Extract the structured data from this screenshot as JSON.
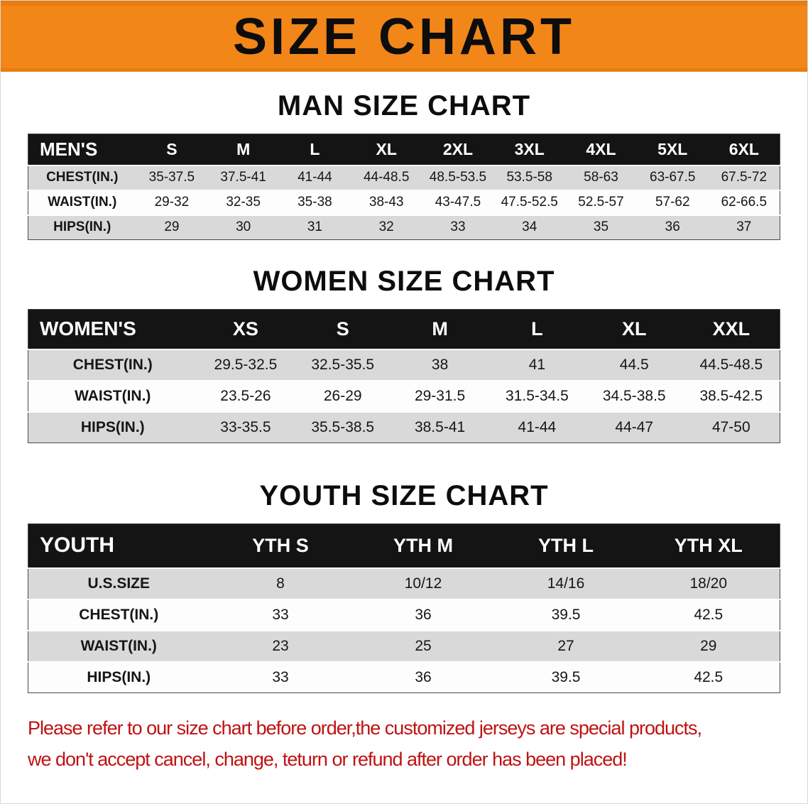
{
  "banner": {
    "title": "SIZE CHART"
  },
  "colors": {
    "banner_orange": "#f28618",
    "table_header_black": "#141414",
    "row_gray": "#d9d9d9",
    "row_white": "#fdfdfd",
    "disclaimer_red": "#c01212"
  },
  "sections": [
    {
      "heading": "MAN SIZE CHART",
      "header_label": "MEN'S",
      "columns": [
        "S",
        "M",
        "L",
        "XL",
        "2XL",
        "3XL",
        "4XL",
        "5XL",
        "6XL"
      ],
      "rows": [
        {
          "label": "CHEST(IN.)",
          "values": [
            "35-37.5",
            "37.5-41",
            "41-44",
            "44-48.5",
            "48.5-53.5",
            "53.5-58",
            "58-63",
            "63-67.5",
            "67.5-72"
          ]
        },
        {
          "label": "WAIST(IN.)",
          "values": [
            "29-32",
            "32-35",
            "35-38",
            "38-43",
            "43-47.5",
            "47.5-52.5",
            "52.5-57",
            "57-62",
            "62-66.5"
          ]
        },
        {
          "label": "HIPS(IN.)",
          "values": [
            "29",
            "30",
            "31",
            "32",
            "33",
            "34",
            "35",
            "36",
            "37"
          ]
        }
      ]
    },
    {
      "heading": "WOMEN SIZE CHART",
      "header_label": "WOMEN'S",
      "columns": [
        "XS",
        "S",
        "M",
        "L",
        "XL",
        "XXL"
      ],
      "rows": [
        {
          "label": "CHEST(IN.)",
          "values": [
            "29.5-32.5",
            "32.5-35.5",
            "38",
            "41",
            "44.5",
            "44.5-48.5"
          ]
        },
        {
          "label": "WAIST(IN.)",
          "values": [
            "23.5-26",
            "26-29",
            "29-31.5",
            "31.5-34.5",
            "34.5-38.5",
            "38.5-42.5"
          ]
        },
        {
          "label": "HIPS(IN.)",
          "values": [
            "33-35.5",
            "35.5-38.5",
            "38.5-41",
            "41-44",
            "44-47",
            "47-50"
          ]
        }
      ]
    },
    {
      "heading": "YOUTH SIZE CHART",
      "header_label": "YOUTH",
      "columns": [
        "YTH S",
        "YTH M",
        "YTH L",
        "YTH XL"
      ],
      "rows": [
        {
          "label": "U.S.SIZE",
          "values": [
            "8",
            "10/12",
            "14/16",
            "18/20"
          ]
        },
        {
          "label": "CHEST(IN.)",
          "values": [
            "33",
            "36",
            "39.5",
            "42.5"
          ]
        },
        {
          "label": "WAIST(IN.)",
          "values": [
            "23",
            "25",
            "27",
            "29"
          ]
        },
        {
          "label": "HIPS(IN.)",
          "values": [
            "33",
            "36",
            "39.5",
            "42.5"
          ]
        }
      ]
    }
  ],
  "footer": {
    "lines": [
      "Please refer to our size chart before order,the customized jerseys are special products,",
      "we don't accept cancel, change, teturn or refund after order has been placed!"
    ]
  }
}
